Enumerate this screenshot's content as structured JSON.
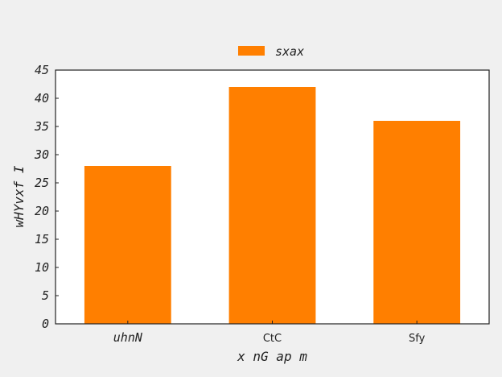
{
  "chart_data": {
    "type": "bar",
    "categories": [
      "uhnN",
      "CtC",
      "Sfy"
    ],
    "series": [
      {
        "name": "sxax",
        "values": [
          28,
          42,
          36
        ]
      }
    ],
    "xlabel": "x nG ap m",
    "ylabel": "wHYvxf I",
    "ylim": [
      0,
      45
    ],
    "yticks": [
      0,
      5,
      10,
      15,
      20,
      25,
      30,
      35,
      40,
      45
    ],
    "grid": false,
    "legend_position": "top-center",
    "colors": {
      "bar": "#ff7f00",
      "background": "#f0f0f0",
      "plot_area": "#ffffff"
    }
  }
}
